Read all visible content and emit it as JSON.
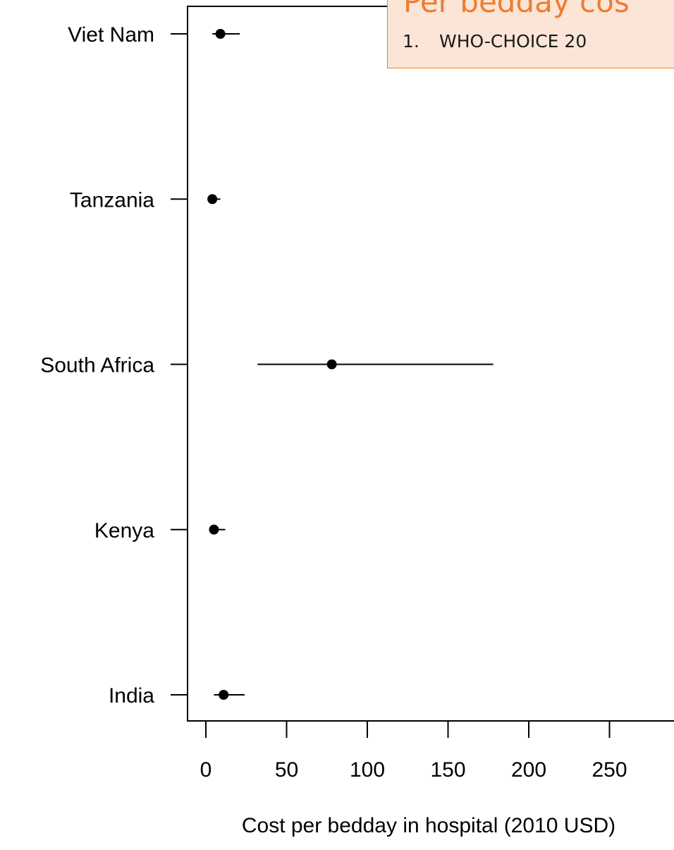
{
  "callout": {
    "title": "Per bedday cos",
    "item_number": "1.",
    "item_text": "WHO-CHOICE 20"
  },
  "chart_data": {
    "type": "scatter",
    "variant": "dot-plot-with-interval-bars",
    "orientation": "horizontal",
    "title": "",
    "xlabel": "Cost per bedday in hospital (2010 USD)",
    "ylabel": "",
    "xlim": [
      -10,
      300
    ],
    "x_ticks": [
      0,
      50,
      100,
      150,
      200,
      250
    ],
    "x_tick_labels": [
      "0",
      "50",
      "100",
      "150",
      "200",
      "250"
    ],
    "categories": [
      "Viet Nam",
      "Tanzania",
      "South Africa",
      "Kenya",
      "India"
    ],
    "points": [
      {
        "label": "Viet Nam",
        "value": 9,
        "low": 4,
        "high": 21
      },
      {
        "label": "Tanzania",
        "value": 4,
        "low": 2,
        "high": 9
      },
      {
        "label": "South Africa",
        "value": 78,
        "low": 32,
        "high": 178
      },
      {
        "label": "Kenya",
        "value": 5,
        "low": 2,
        "high": 12
      },
      {
        "label": "India",
        "value": 11,
        "low": 5,
        "high": 24
      }
    ],
    "grid": false,
    "legend": "none",
    "colors": {
      "marker": "#000000",
      "axis": "#000000",
      "callout_fill": "#fbe5d6",
      "callout_border": "#ed7d31",
      "callout_title": "#ed7d31"
    }
  }
}
